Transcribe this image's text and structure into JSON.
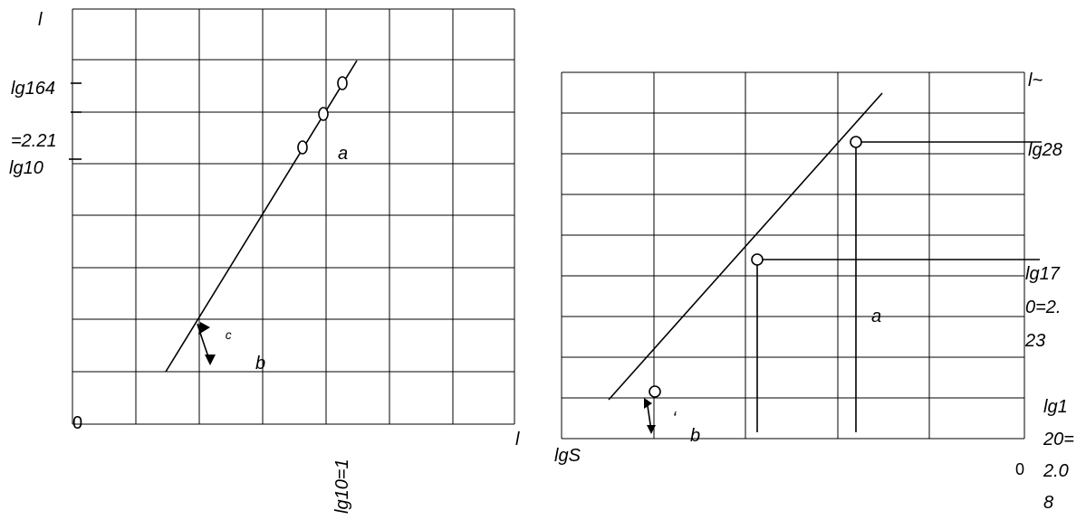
{
  "left_graph": {
    "y_axis_label": "l",
    "x_axis_label": "l",
    "origin_label": "0",
    "y_label_1": "lg164",
    "y_label_2": "=2.21",
    "y_label_3": "lg10",
    "x_tick_label": "lg10=1",
    "line_label_a": "a",
    "angle_label_b": "b",
    "angle_symbol": "ᶜ"
  },
  "right_graph": {
    "x_axis_label": "lgS",
    "origin_label": "0",
    "top_label": "l~",
    "label_lg28": "lg28",
    "label_lg170_line1": "lg17",
    "label_lg170_line2": "0=2.",
    "label_lg170_line3": "23",
    "label_lg120_line1": "lg1",
    "label_lg120_line2": "20=",
    "label_lg120_line3": "2.0",
    "label_lg120_line4": "8",
    "line_label_a": "a",
    "angle_label_b": "b",
    "angle_symbol": "ʻ"
  }
}
